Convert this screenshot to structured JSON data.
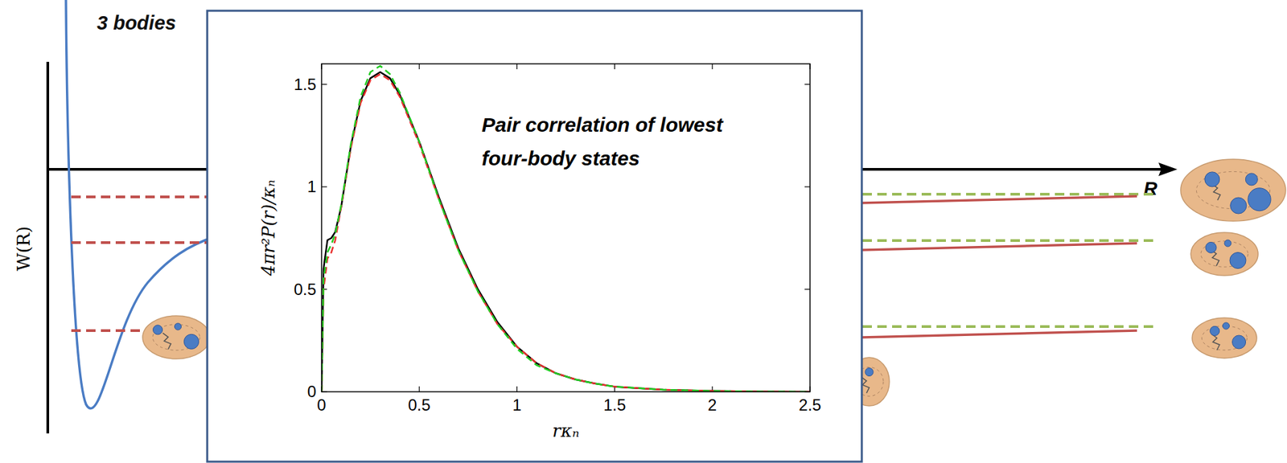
{
  "chart_data": {
    "type": "line",
    "annotation": [
      "Pair correlation of lowest",
      "four-body states"
    ],
    "x_label": "rκₙ",
    "y_label": "4πr²P(r)/κₙ",
    "xlim": [
      0,
      2.5
    ],
    "ylim": [
      0,
      1.6
    ],
    "xticks": [
      0,
      0.5,
      1,
      1.5,
      2,
      2.5
    ],
    "yticks": [
      0,
      0.5,
      1,
      1.5
    ],
    "grid": false,
    "x": [
      0,
      0.01,
      0.03,
      0.05,
      0.07,
      0.1,
      0.15,
      0.2,
      0.25,
      0.3,
      0.35,
      0.4,
      0.5,
      0.6,
      0.7,
      0.8,
      0.9,
      1.0,
      1.1,
      1.2,
      1.3,
      1.4,
      1.5,
      1.75,
      2.0,
      2.25,
      2.5
    ],
    "series": [
      {
        "color": "#000000",
        "line_style": "solid",
        "values": [
          0,
          0.6,
          0.74,
          0.75,
          0.78,
          0.9,
          1.2,
          1.42,
          1.53,
          1.56,
          1.53,
          1.45,
          1.22,
          0.95,
          0.7,
          0.5,
          0.34,
          0.22,
          0.14,
          0.09,
          0.06,
          0.04,
          0.025,
          0.01,
          0.004,
          0.001,
          0
        ]
      },
      {
        "color": "#e8312f",
        "line_style": "dashed",
        "values": [
          0,
          0.5,
          0.65,
          0.68,
          0.74,
          0.9,
          1.19,
          1.41,
          1.52,
          1.55,
          1.52,
          1.44,
          1.21,
          0.94,
          0.69,
          0.49,
          0.33,
          0.22,
          0.14,
          0.09,
          0.06,
          0.04,
          0.025,
          0.01,
          0.004,
          0.001,
          0
        ]
      },
      {
        "color": "#22cc22",
        "line_style": "dashed",
        "values": [
          0,
          0.55,
          0.68,
          0.72,
          0.77,
          0.91,
          1.21,
          1.44,
          1.56,
          1.59,
          1.55,
          1.46,
          1.22,
          0.94,
          0.69,
          0.49,
          0.33,
          0.21,
          0.13,
          0.09,
          0.06,
          0.04,
          0.025,
          0.01,
          0.004,
          0.001,
          0
        ]
      }
    ]
  },
  "background": {
    "title": "3 bodies",
    "y_label": "W(R)",
    "x_label": "R"
  }
}
